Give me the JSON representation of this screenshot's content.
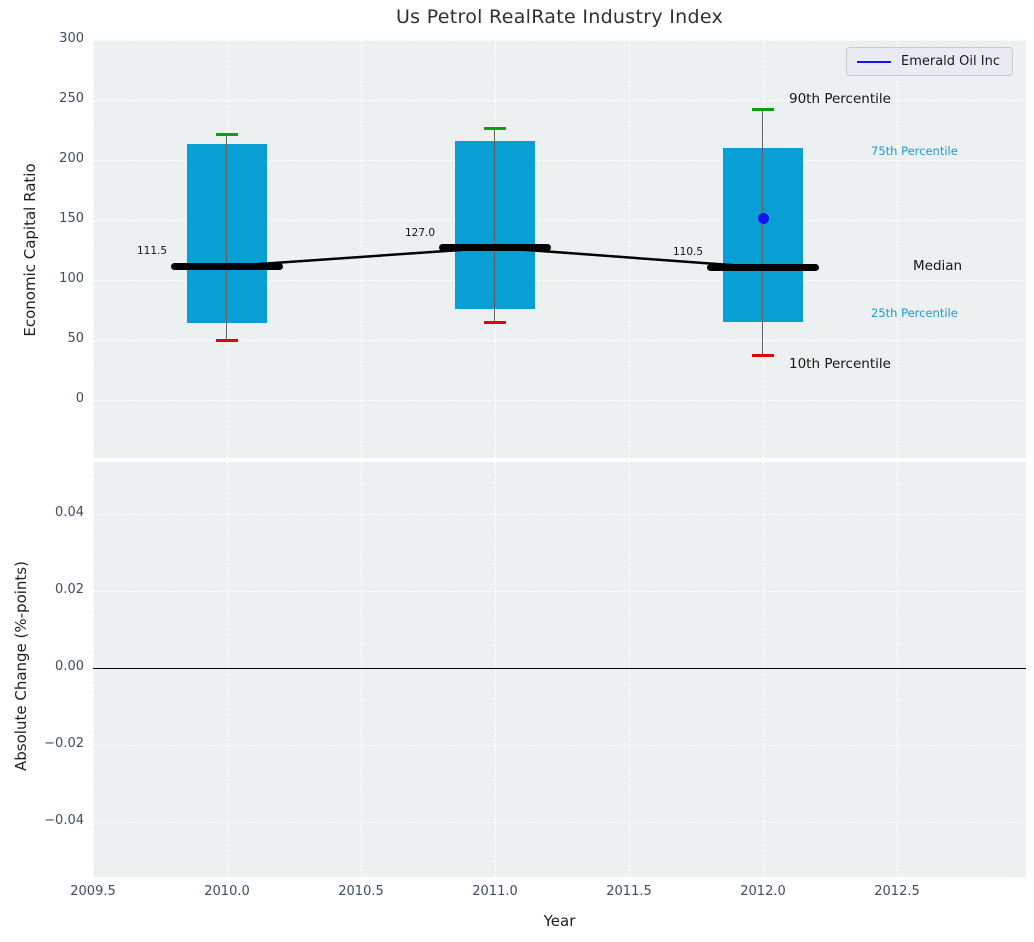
{
  "title": "Us Petrol RealRate Industry Index",
  "xlabel": "Year",
  "legend": {
    "label": "Emerald Oil Inc"
  },
  "top_axis": {
    "ylabel": "Economic Capital Ratio",
    "ytick_labels": [
      "300",
      "250",
      "200",
      "150",
      "100",
      "50",
      "0"
    ],
    "ytick_values": [
      300,
      250,
      200,
      150,
      100,
      50,
      0
    ]
  },
  "bottom_axis": {
    "ylabel": "Absolute Change (%-points)",
    "ytick_labels": [
      "0.04",
      "0.02",
      "0.00",
      "−0.02",
      "−0.04"
    ],
    "ytick_values": [
      0.04,
      0.02,
      0.0,
      -0.02,
      -0.04
    ]
  },
  "xtick_labels": [
    "2009.5",
    "2010.0",
    "2010.5",
    "2011.0",
    "2011.5",
    "2012.0",
    "2012.5"
  ],
  "xtick_values": [
    2009.5,
    2010.0,
    2010.5,
    2011.0,
    2011.5,
    2012.0,
    2012.5
  ],
  "annotations": {
    "p90": "90th Percentile",
    "p75": "75th Percentile",
    "median": "Median",
    "p25": "25th Percentile",
    "p10": "10th Percentile"
  },
  "colors": {
    "box_fill": "#089fd4",
    "median_line": "#000000",
    "whisker": "#606060",
    "p90_cap": "#0ca00c",
    "p10_cap": "#e80000",
    "company": "#1212ee",
    "annotation_accent": "#1d9ad1",
    "axes_background": "#edf0f1",
    "tick_label": "#3d4d63"
  },
  "chart_data": {
    "type": "box",
    "title": "Us Petrol RealRate Industry Index",
    "xlabel": "Year",
    "ylabel": "Economic Capital Ratio",
    "ylabel_secondary": "Absolute Change (%-points)",
    "xlim": [
      2009.5,
      2013.0
    ],
    "ylim_top": [
      -48,
      300
    ],
    "ylim_bottom": [
      -0.055,
      0.054
    ],
    "grid": true,
    "legend_position": "upper right",
    "boxes": [
      {
        "x": 2010,
        "p10": 50,
        "p25": 64,
        "median": 111.5,
        "p75": 213,
        "p90": 221,
        "median_label": "111.5"
      },
      {
        "x": 2011,
        "p10": 65,
        "p25": 76,
        "median": 127.0,
        "p75": 216,
        "p90": 226,
        "median_label": "127.0"
      },
      {
        "x": 2012,
        "p10": 37.5,
        "p25": 65,
        "median": 110.5,
        "p75": 210,
        "p90": 242,
        "median_label": "110.5"
      }
    ],
    "median_line": {
      "x": [
        2010,
        2011,
        2012
      ],
      "y": [
        111.5,
        127.0,
        110.5
      ]
    },
    "series": [
      {
        "name": "Emerald Oil Inc",
        "type": "scatter",
        "points": [
          {
            "x": 2012,
            "y": 151
          }
        ]
      }
    ],
    "bottom_zero_line": 0.0
  }
}
